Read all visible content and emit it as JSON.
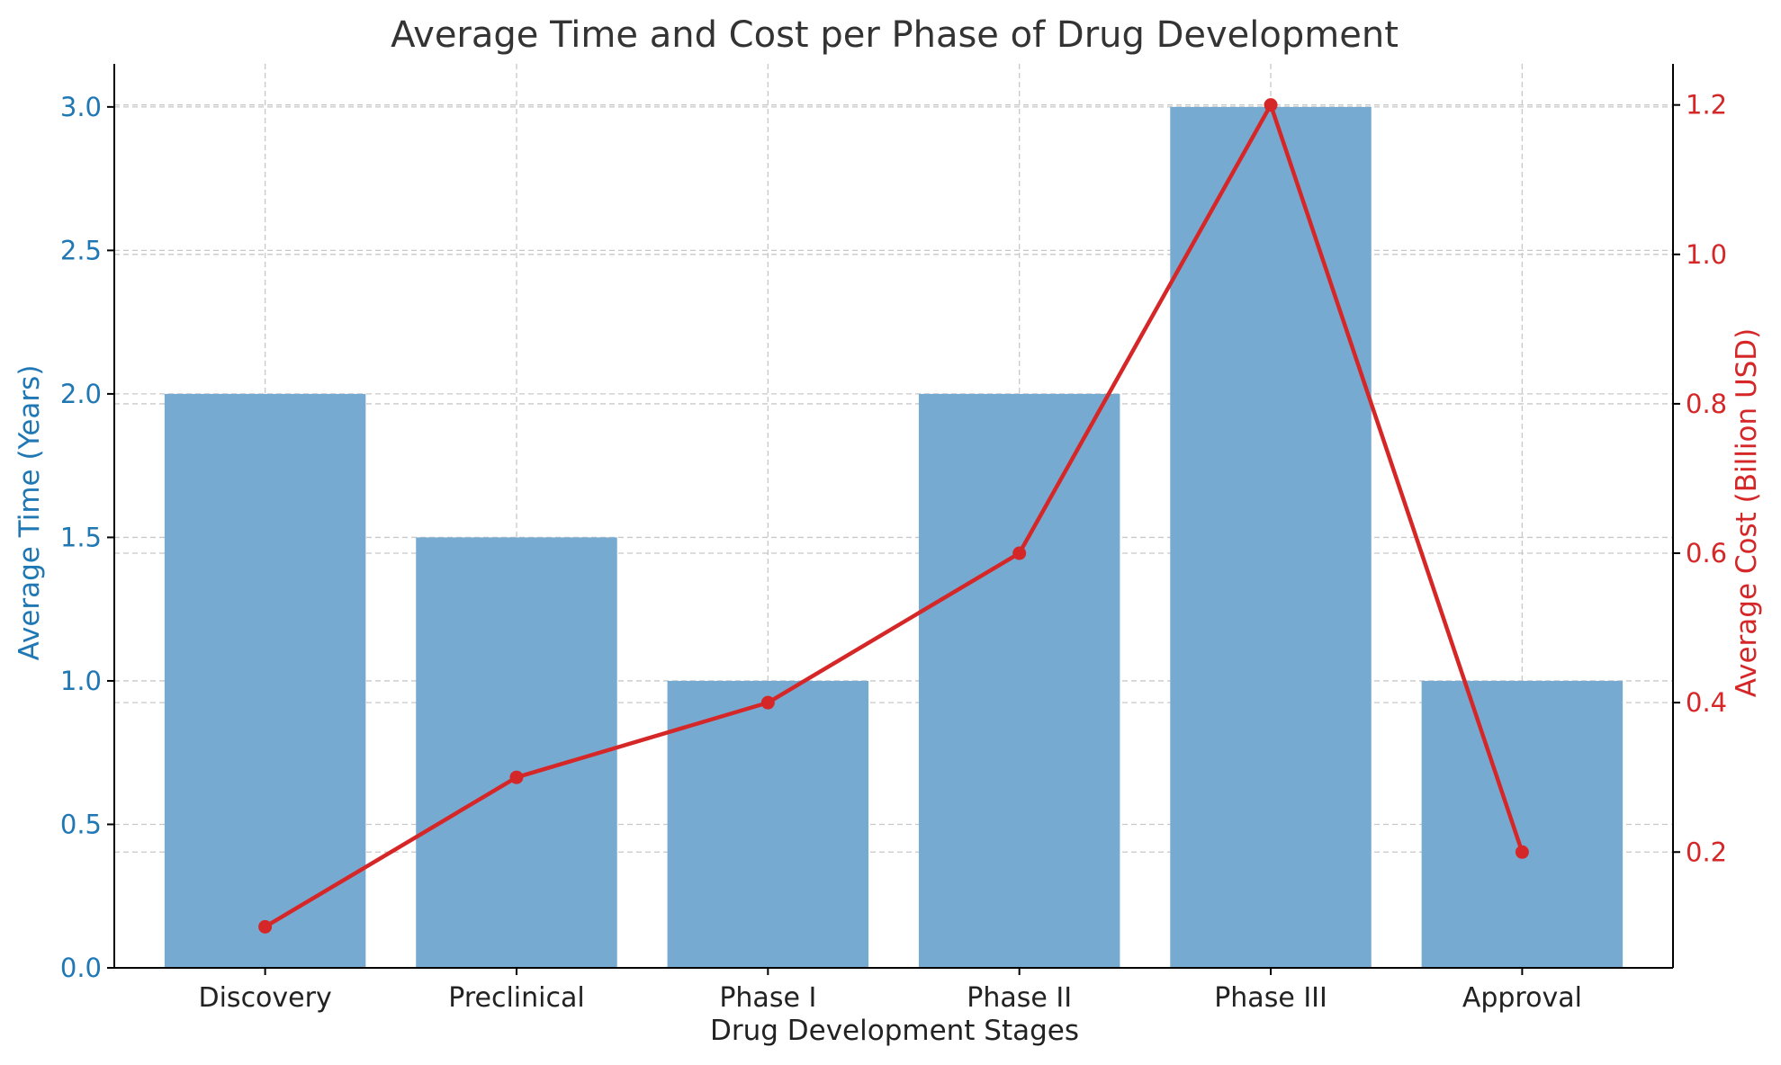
{
  "chart_data": {
    "type": "bar+line",
    "title": "Average Time and Cost per Phase of Drug Development",
    "xlabel": "Drug Development Stages",
    "categories": [
      "Discovery",
      "Preclinical",
      "Phase I",
      "Phase II",
      "Phase III",
      "Approval"
    ],
    "series": [
      {
        "name": "Average Time (Years)",
        "type": "bar",
        "axis": "left",
        "color": "#77aad0",
        "values": [
          2.0,
          1.5,
          1.0,
          2.0,
          3.0,
          1.0
        ]
      },
      {
        "name": "Average Cost (Billion USD)",
        "type": "line",
        "axis": "right",
        "color": "#d62728",
        "values": [
          0.1,
          0.3,
          0.4,
          0.6,
          1.2,
          0.2
        ]
      }
    ],
    "left_axis": {
      "label": "Average Time (Years)",
      "color": "#1f77b4",
      "ylim": [
        0.0,
        3.15
      ],
      "ticks": [
        0.0,
        0.5,
        1.0,
        1.5,
        2.0,
        2.5,
        3.0
      ],
      "tick_labels": [
        "0.0",
        "0.5",
        "1.0",
        "1.5",
        "2.0",
        "2.5",
        "3.0"
      ]
    },
    "right_axis": {
      "label": "Average Cost (Billion USD)",
      "color": "#d62728",
      "ylim": [
        0.045,
        1.255
      ],
      "ticks": [
        0.2,
        0.4,
        0.6,
        0.8,
        1.0,
        1.2
      ],
      "tick_labels": [
        "0.2",
        "0.4",
        "0.6",
        "0.8",
        "1.0",
        "1.2"
      ]
    },
    "grid": true
  }
}
